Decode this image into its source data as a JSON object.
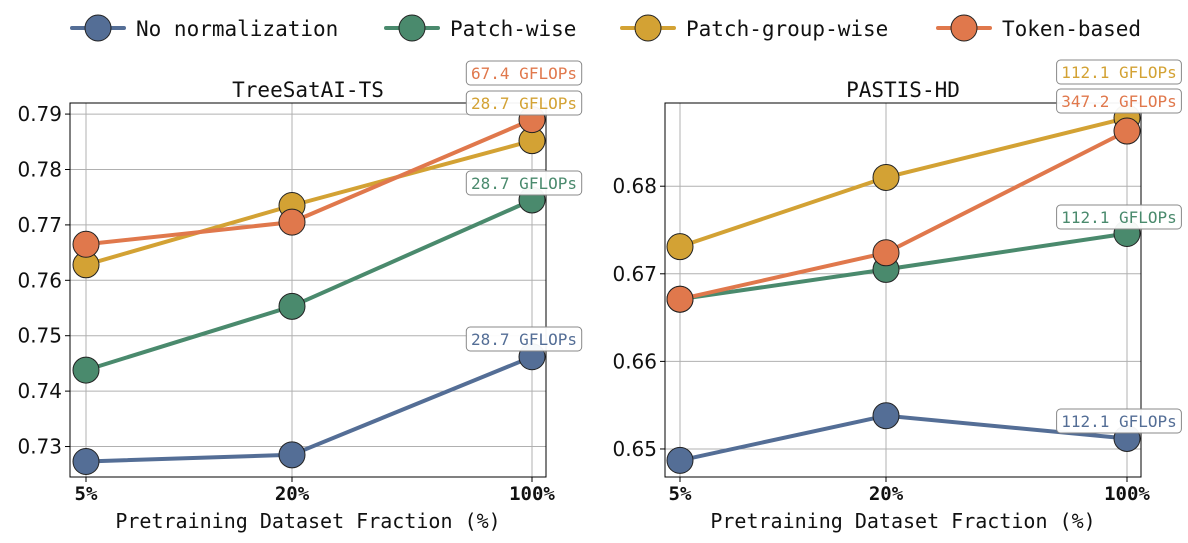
{
  "legend": [
    {
      "label": "No normalization",
      "color": "#546e96"
    },
    {
      "label": "Patch-wise",
      "color": "#4a8a6d"
    },
    {
      "label": "Patch-group-wise",
      "color": "#d3a234"
    },
    {
      "label": "Token-based",
      "color": "#e0784c"
    }
  ],
  "chart_data": [
    {
      "type": "line",
      "title": "TreeSatAI-TS",
      "xlabel": "Pretraining Dataset Fraction (%)",
      "ylabel": "",
      "categories": [
        "5%",
        "20%",
        "100%"
      ],
      "ylim": [
        0.7245,
        0.792
      ],
      "yticks": [
        "0.73",
        "0.74",
        "0.75",
        "0.76",
        "0.77",
        "0.78",
        "0.79"
      ],
      "grid": true,
      "series": [
        {
          "name": "No normalization",
          "color": "#546e96",
          "values": [
            0.7273,
            0.7285,
            0.7462
          ]
        },
        {
          "name": "Patch-wise",
          "color": "#4a8a6d",
          "values": [
            0.7438,
            0.7553,
            0.7745
          ]
        },
        {
          "name": "Patch-group-wise",
          "color": "#d3a234",
          "values": [
            0.7628,
            0.7735,
            0.7852
          ]
        },
        {
          "name": "Token-based",
          "color": "#e0784c",
          "values": [
            0.7665,
            0.7705,
            0.789
          ]
        }
      ],
      "annotations": [
        {
          "text": "67.4 GFLOPs",
          "series": "Token-based",
          "color": "#e0784c"
        },
        {
          "text": "28.7 GFLOPs",
          "series": "Patch-group-wise",
          "color": "#d3a234"
        },
        {
          "text": "28.7 GFLOPs",
          "series": "Patch-wise",
          "color": "#4a8a6d"
        },
        {
          "text": "28.7 GFLOPs",
          "series": "No normalization",
          "color": "#546e96"
        }
      ]
    },
    {
      "type": "line",
      "title": "PASTIS-HD",
      "xlabel": "Pretraining Dataset Fraction (%)",
      "ylabel": "",
      "categories": [
        "5%",
        "20%",
        "100%"
      ],
      "ylim": [
        0.6468,
        0.6895
      ],
      "yticks": [
        "0.65",
        "0.66",
        "0.67",
        "0.68"
      ],
      "grid": true,
      "series": [
        {
          "name": "No normalization",
          "color": "#546e96",
          "values": [
            0.6487,
            0.6538,
            0.6512
          ]
        },
        {
          "name": "Patch-wise",
          "color": "#4a8a6d",
          "values": [
            0.6671,
            0.6705,
            0.6746
          ]
        },
        {
          "name": "Patch-group-wise",
          "color": "#d3a234",
          "values": [
            0.6731,
            0.681,
            0.6878
          ]
        },
        {
          "name": "Token-based",
          "color": "#e0784c",
          "values": [
            0.6671,
            0.6724,
            0.6863
          ]
        }
      ],
      "annotations": [
        {
          "text": "112.1 GFLOPs",
          "series": "Patch-group-wise",
          "color": "#d3a234"
        },
        {
          "text": "347.2 GFLOPs",
          "series": "Token-based",
          "color": "#e0784c"
        },
        {
          "text": "112.1 GFLOPs",
          "series": "Patch-wise",
          "color": "#4a8a6d"
        },
        {
          "text": "112.1 GFLOPs",
          "series": "No normalization",
          "color": "#546e96"
        }
      ]
    }
  ]
}
